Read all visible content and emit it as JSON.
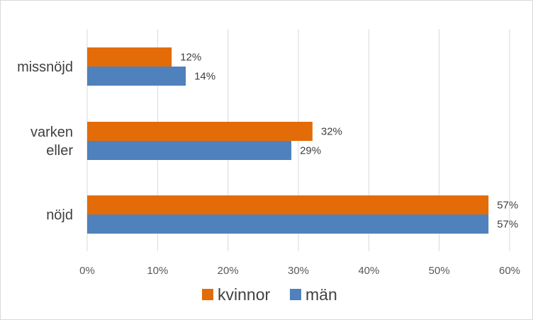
{
  "chart_data": {
    "type": "bar",
    "orientation": "horizontal",
    "categories": [
      [
        "missnöjd"
      ],
      [
        "varken",
        "eller"
      ],
      [
        "nöjd"
      ]
    ],
    "series": [
      {
        "name": "kvinnor",
        "values": [
          12,
          32,
          57
        ],
        "labels": [
          "12%",
          "32%",
          "57%"
        ],
        "color": "#E36C09"
      },
      {
        "name": "män",
        "values": [
          14,
          29,
          57
        ],
        "labels": [
          "14%",
          "29%",
          "57%"
        ],
        "color": "#4F81BD"
      }
    ],
    "xlim": [
      0,
      60
    ],
    "xticks": [
      0,
      10,
      20,
      30,
      40,
      50,
      60
    ],
    "xtick_labels": [
      "0%",
      "10%",
      "20%",
      "30%",
      "40%",
      "50%",
      "60%"
    ],
    "grid": "vertical",
    "legend": "bottom-center",
    "title": "",
    "xlabel": "",
    "ylabel": ""
  }
}
